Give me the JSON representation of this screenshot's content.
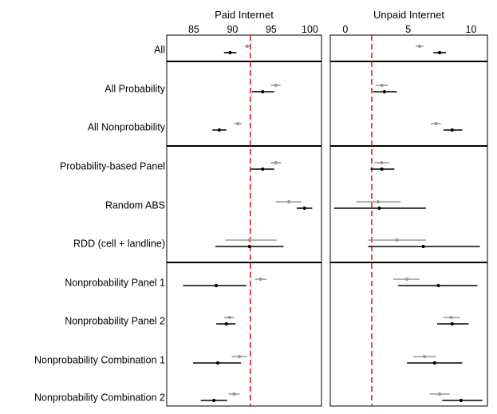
{
  "chart_data": {
    "type": "dot-interval",
    "rows": [
      "All",
      "All Probability",
      "All Nonprobability",
      "Probability-based Panel",
      "Random ABS",
      "RDD (cell + landline)",
      "Nonprobability Panel 1",
      "Nonprobability Panel 2",
      "Nonprobability Combination 1",
      "Nonprobability Combination 2"
    ],
    "groups": [
      [
        0
      ],
      [
        1,
        2
      ],
      [
        3,
        4,
        5
      ],
      [
        6,
        7,
        8,
        9
      ]
    ],
    "marker_colors": {
      "upper": "#999999",
      "lower": "#000000"
    },
    "reference_line_color": "#e8171f",
    "panels": [
      {
        "title": "Paid Internet",
        "xlim": [
          81.5,
          101.5
        ],
        "ticks": [
          85,
          90,
          95,
          100
        ],
        "reference_line": 92.3,
        "upper": [
          {
            "est": 91.9,
            "lo": 91.6,
            "hi": 92.2
          },
          {
            "est": 95.6,
            "lo": 95.0,
            "hi": 96.2
          },
          {
            "est": 90.7,
            "lo": 90.2,
            "hi": 91.2
          },
          {
            "est": 95.6,
            "lo": 94.9,
            "hi": 96.3
          },
          {
            "est": 97.3,
            "lo": 95.6,
            "hi": 98.9
          },
          {
            "est": 92.2,
            "lo": 89.1,
            "hi": 95.7
          },
          {
            "est": 93.6,
            "lo": 92.9,
            "hi": 94.4
          },
          {
            "est": 89.6,
            "lo": 88.9,
            "hi": 90.2
          },
          {
            "est": 90.9,
            "lo": 89.9,
            "hi": 91.9
          },
          {
            "est": 90.2,
            "lo": 89.5,
            "hi": 90.9
          }
        ],
        "lower": [
          {
            "est": 89.7,
            "lo": 88.9,
            "hi": 90.5
          },
          {
            "est": 93.9,
            "lo": 92.5,
            "hi": 95.4
          },
          {
            "est": 88.3,
            "lo": 87.4,
            "hi": 89.2
          },
          {
            "est": 93.9,
            "lo": 92.4,
            "hi": 95.4
          },
          {
            "est": 99.3,
            "lo": 98.3,
            "hi": 100.3
          },
          {
            "est": 92.2,
            "lo": 87.8,
            "hi": 96.6
          },
          {
            "est": 87.9,
            "lo": 83.6,
            "hi": 91.8
          },
          {
            "est": 89.2,
            "lo": 87.9,
            "hi": 90.4
          },
          {
            "est": 88.1,
            "lo": 84.9,
            "hi": 91.1
          },
          {
            "est": 87.6,
            "lo": 85.9,
            "hi": 89.3
          }
        ]
      },
      {
        "title": "Unpaid Internet",
        "xlim": [
          -1.2,
          11.3
        ],
        "ticks": [
          0,
          5,
          10
        ],
        "reference_line": 2.1,
        "upper": [
          {
            "est": 5.9,
            "lo": 5.6,
            "hi": 6.2
          },
          {
            "est": 2.9,
            "lo": 2.4,
            "hi": 3.4
          },
          {
            "est": 7.2,
            "lo": 6.8,
            "hi": 7.6
          },
          {
            "est": 2.9,
            "lo": 2.3,
            "hi": 3.5
          },
          {
            "est": 2.6,
            "lo": 0.9,
            "hi": 4.4
          },
          {
            "est": 4.1,
            "lo": 1.8,
            "hi": 6.4
          },
          {
            "est": 4.9,
            "lo": 3.8,
            "hi": 5.9
          },
          {
            "est": 8.4,
            "lo": 7.8,
            "hi": 9.1
          },
          {
            "est": 6.3,
            "lo": 5.4,
            "hi": 7.2
          },
          {
            "est": 7.5,
            "lo": 6.7,
            "hi": 8.3
          }
        ],
        "lower": [
          {
            "est": 7.5,
            "lo": 7.0,
            "hi": 8.0
          },
          {
            "est": 3.1,
            "lo": 2.2,
            "hi": 4.1
          },
          {
            "est": 8.5,
            "lo": 7.8,
            "hi": 9.3
          },
          {
            "est": 2.9,
            "lo": 2.0,
            "hi": 3.9
          },
          {
            "est": 2.7,
            "lo": -0.9,
            "hi": 6.4
          },
          {
            "est": 6.2,
            "lo": 1.8,
            "hi": 10.7
          },
          {
            "est": 7.4,
            "lo": 4.2,
            "hi": 10.5
          },
          {
            "est": 8.5,
            "lo": 7.3,
            "hi": 9.8
          },
          {
            "est": 7.1,
            "lo": 4.9,
            "hi": 9.3
          },
          {
            "est": 9.2,
            "lo": 7.7,
            "hi": 10.9
          }
        ]
      }
    ]
  }
}
